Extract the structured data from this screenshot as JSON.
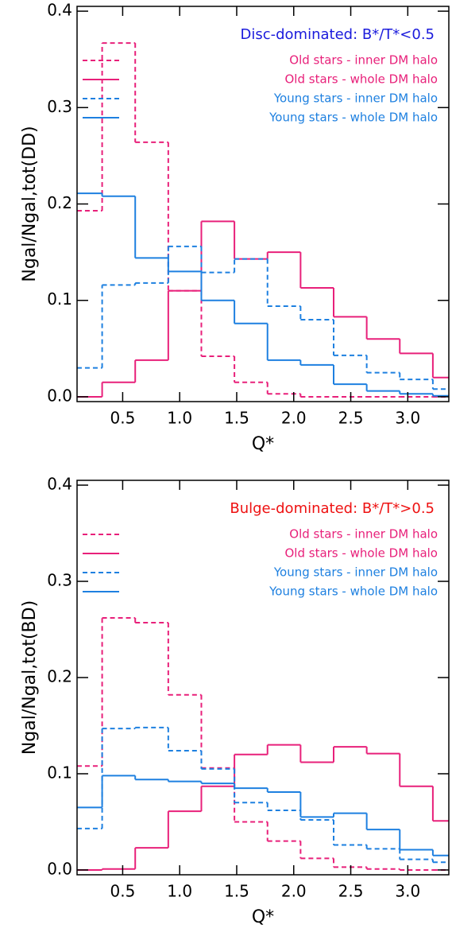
{
  "chart_data": [
    {
      "type": "step-histogram",
      "annotation": "Disc-dominated: B*/T*<0.5",
      "annotation_color": "#1a1adc",
      "x_label": "Q*",
      "y_label": "Ngal/Ngal,tot(DD)",
      "bins": [
        0.03,
        0.32,
        0.61,
        0.9,
        1.19,
        1.48,
        1.77,
        2.06,
        2.35,
        2.64,
        2.93,
        3.22,
        3.51
      ],
      "xlim": [
        0.1,
        3.36
      ],
      "ylim": [
        -0.005,
        0.405
      ],
      "xticks": [
        0.5,
        {
          "value": 1.0,
          "label": "1.0"
        },
        1.5,
        {
          "value": 2.0,
          "label": "2.0"
        },
        2.5,
        {
          "value": 3.0,
          "label": "3.0"
        }
      ],
      "yticks": [
        {
          "value": 0.0,
          "label": "0.0"
        },
        0.1,
        0.2,
        0.3,
        0.4
      ],
      "legend": "upper right",
      "series": [
        {
          "name": "Old stars - inner DM halo",
          "color": "#e8207a",
          "linestyle": "dashed",
          "values": [
            0.193,
            0.367,
            0.264,
            0.11,
            0.042,
            0.015,
            0.003,
            0,
            0,
            0,
            0,
            0
          ]
        },
        {
          "name": "Old stars - whole DM halo",
          "color": "#e8207a",
          "linestyle": "solid",
          "values": [
            0,
            0.015,
            0.038,
            0.11,
            0.182,
            0.143,
            0.15,
            0.113,
            0.083,
            0.06,
            0.045,
            0.02
          ]
        },
        {
          "name": "Young stars - inner DM halo",
          "color": "#1e80e0",
          "linestyle": "dashed",
          "values": [
            0.03,
            0.116,
            0.118,
            0.156,
            0.129,
            0.143,
            0.094,
            0.08,
            0.043,
            0.025,
            0.018,
            0.008
          ]
        },
        {
          "name": "Young stars - whole DM halo",
          "color": "#1e80e0",
          "linestyle": "solid",
          "values": [
            0.211,
            0.208,
            0.144,
            0.13,
            0.1,
            0.076,
            0.038,
            0.033,
            0.013,
            0.006,
            0.003,
            0.001
          ]
        }
      ]
    },
    {
      "type": "step-histogram",
      "annotation": "Bulge-dominated: B*/T*>0.5",
      "annotation_color": "#ee1111",
      "x_label": "Q*",
      "y_label": "Ngal/Ngal,tot(BD)",
      "bins": [
        0.03,
        0.32,
        0.61,
        0.9,
        1.19,
        1.48,
        1.77,
        2.06,
        2.35,
        2.64,
        2.93,
        3.22,
        3.51
      ],
      "xlim": [
        0.1,
        3.36
      ],
      "ylim": [
        -0.005,
        0.405
      ],
      "xticks": [
        0.5,
        {
          "value": 1.0,
          "label": "1.0"
        },
        1.5,
        {
          "value": 2.0,
          "label": "2.0"
        },
        2.5,
        {
          "value": 3.0,
          "label": "3.0"
        }
      ],
      "yticks": [
        {
          "value": 0.0,
          "label": "0.0"
        },
        0.1,
        0.2,
        0.3,
        0.4
      ],
      "legend": "upper right",
      "series": [
        {
          "name": "Old stars - inner DM halo",
          "color": "#e8207a",
          "linestyle": "dashed",
          "values": [
            0.108,
            0.262,
            0.257,
            0.182,
            0.106,
            0.05,
            0.03,
            0.012,
            0.003,
            0.001,
            0,
            0
          ]
        },
        {
          "name": "Old stars - whole DM halo",
          "color": "#e8207a",
          "linestyle": "solid",
          "values": [
            0,
            0.001,
            0.023,
            0.061,
            0.087,
            0.12,
            0.13,
            0.112,
            0.128,
            0.121,
            0.087,
            0.051
          ]
        },
        {
          "name": "Young stars - inner DM halo",
          "color": "#1e80e0",
          "linestyle": "dashed",
          "values": [
            0.043,
            0.147,
            0.148,
            0.124,
            0.105,
            0.07,
            0.062,
            0.052,
            0.026,
            0.022,
            0.011,
            0.008
          ]
        },
        {
          "name": "Young stars - whole DM halo",
          "color": "#1e80e0",
          "linestyle": "solid",
          "values": [
            0.065,
            0.098,
            0.094,
            0.092,
            0.09,
            0.085,
            0.081,
            0.055,
            0.059,
            0.042,
            0.021,
            0.015
          ]
        }
      ]
    }
  ]
}
